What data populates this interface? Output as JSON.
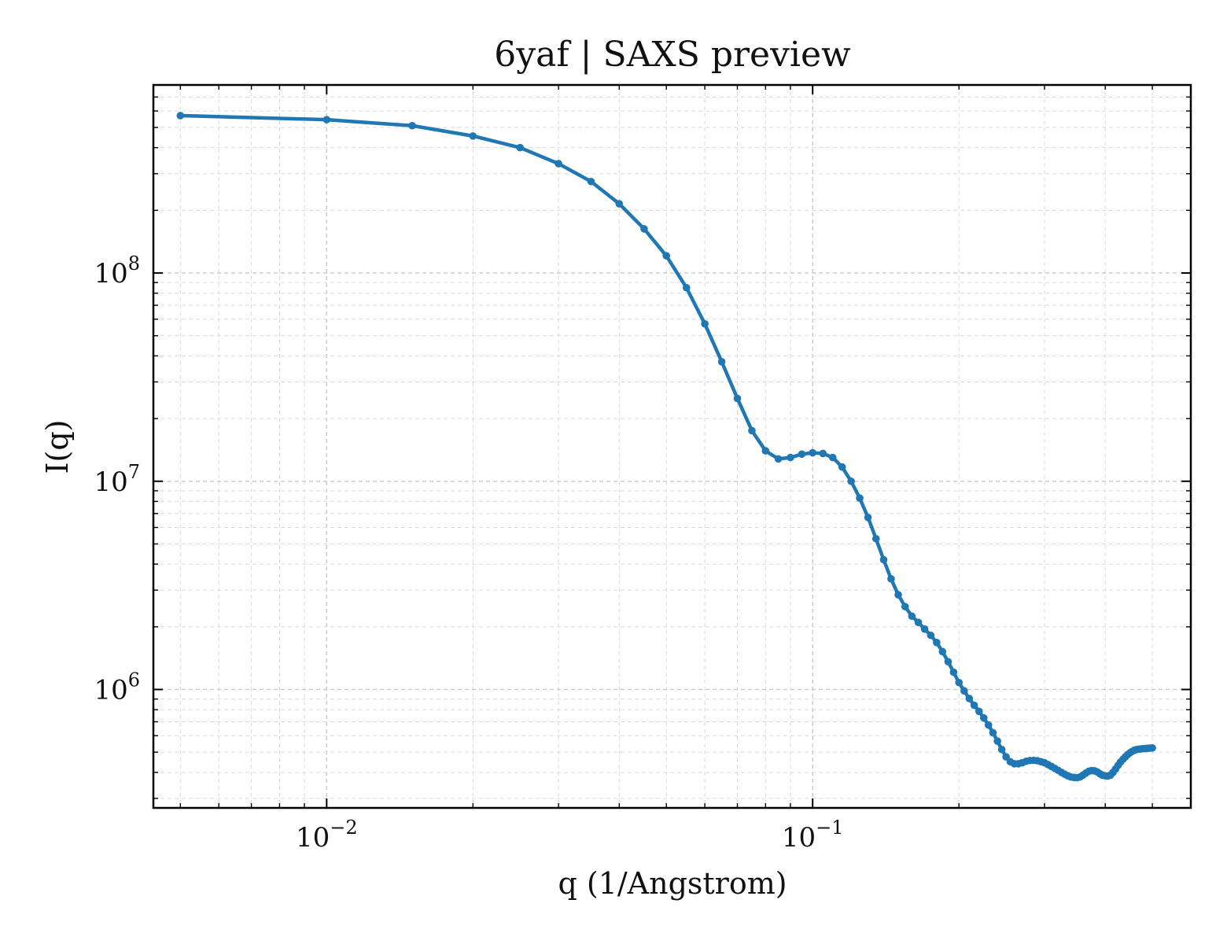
{
  "chart_data": {
    "type": "line",
    "title": "6yaf | SAXS preview",
    "xlabel": "q (1/Angstrom)",
    "ylabel": "I(q)",
    "xscale": "log",
    "yscale": "log",
    "xlim": [
      0.0044,
      0.6
    ],
    "ylim": [
      270000,
      800000000
    ],
    "grid": true,
    "grid_style": "dashed",
    "legend": "none",
    "x_tick_labels": [
      {
        "value": 0.01,
        "base": "10",
        "exp": "−2"
      },
      {
        "value": 0.1,
        "base": "10",
        "exp": "−1"
      }
    ],
    "y_tick_labels": [
      {
        "value": 1000000,
        "base": "10",
        "exp": "6"
      },
      {
        "value": 10000000,
        "base": "10",
        "exp": "7"
      },
      {
        "value": 100000000,
        "base": "10",
        "exp": "8"
      }
    ],
    "series": [
      {
        "color": "#1f77b4",
        "marker": "dot",
        "x": [
          0.005,
          0.01,
          0.015,
          0.02,
          0.025,
          0.03,
          0.035,
          0.04,
          0.045,
          0.05,
          0.055,
          0.06,
          0.065,
          0.07,
          0.075,
          0.08,
          0.085,
          0.09,
          0.095,
          0.1,
          0.105,
          0.11,
          0.115,
          0.12,
          0.125,
          0.13,
          0.135,
          0.14,
          0.145,
          0.15,
          0.155,
          0.16,
          0.165,
          0.17,
          0.175,
          0.18,
          0.185,
          0.19,
          0.195,
          0.2,
          0.205,
          0.21,
          0.215,
          0.22,
          0.225,
          0.23,
          0.235,
          0.24,
          0.245,
          0.25,
          0.255,
          0.26,
          0.265,
          0.27,
          0.275,
          0.28,
          0.285,
          0.29,
          0.295,
          0.3,
          0.305,
          0.31,
          0.315,
          0.32,
          0.325,
          0.33,
          0.335,
          0.34,
          0.345,
          0.35,
          0.355,
          0.36,
          0.365,
          0.37,
          0.375,
          0.38,
          0.385,
          0.39,
          0.395,
          0.4,
          0.405,
          0.41,
          0.415,
          0.42,
          0.425,
          0.43,
          0.435,
          0.44,
          0.445,
          0.45,
          0.455,
          0.46,
          0.465,
          0.47,
          0.475,
          0.48,
          0.485,
          0.49,
          0.495,
          0.5
        ],
        "y": [
          570000000,
          545000000,
          510000000,
          455000000,
          400000000,
          335000000,
          275000000,
          215000000,
          163000000,
          121000000,
          85000000,
          57000000,
          37500000,
          25000000,
          17500000,
          14000000,
          12800000,
          13000000,
          13500000,
          13700000,
          13600000,
          13000000,
          11700000,
          10000000,
          8300000,
          6700000,
          5300000,
          4200000,
          3400000,
          2850000,
          2500000,
          2250000,
          2100000,
          1950000,
          1820000,
          1680000,
          1520000,
          1360000,
          1210000,
          1080000,
          985000,
          905000,
          840000,
          785000,
          730000,
          675000,
          620000,
          565000,
          515000,
          475000,
          450000,
          440000,
          440000,
          445000,
          452000,
          456000,
          457000,
          455000,
          450000,
          445000,
          436000,
          427000,
          418000,
          409000,
          400000,
          392000,
          385000,
          380000,
          378000,
          377000,
          380000,
          388000,
          397000,
          405000,
          408000,
          407000,
          402000,
          394000,
          387000,
          385000,
          384000,
          388000,
          400000,
          415000,
          432000,
          448000,
          462000,
          475000,
          487000,
          497000,
          505000,
          512000,
          515000,
          517000,
          519000,
          520000,
          521000,
          522000,
          523000,
          524000
        ]
      }
    ]
  }
}
